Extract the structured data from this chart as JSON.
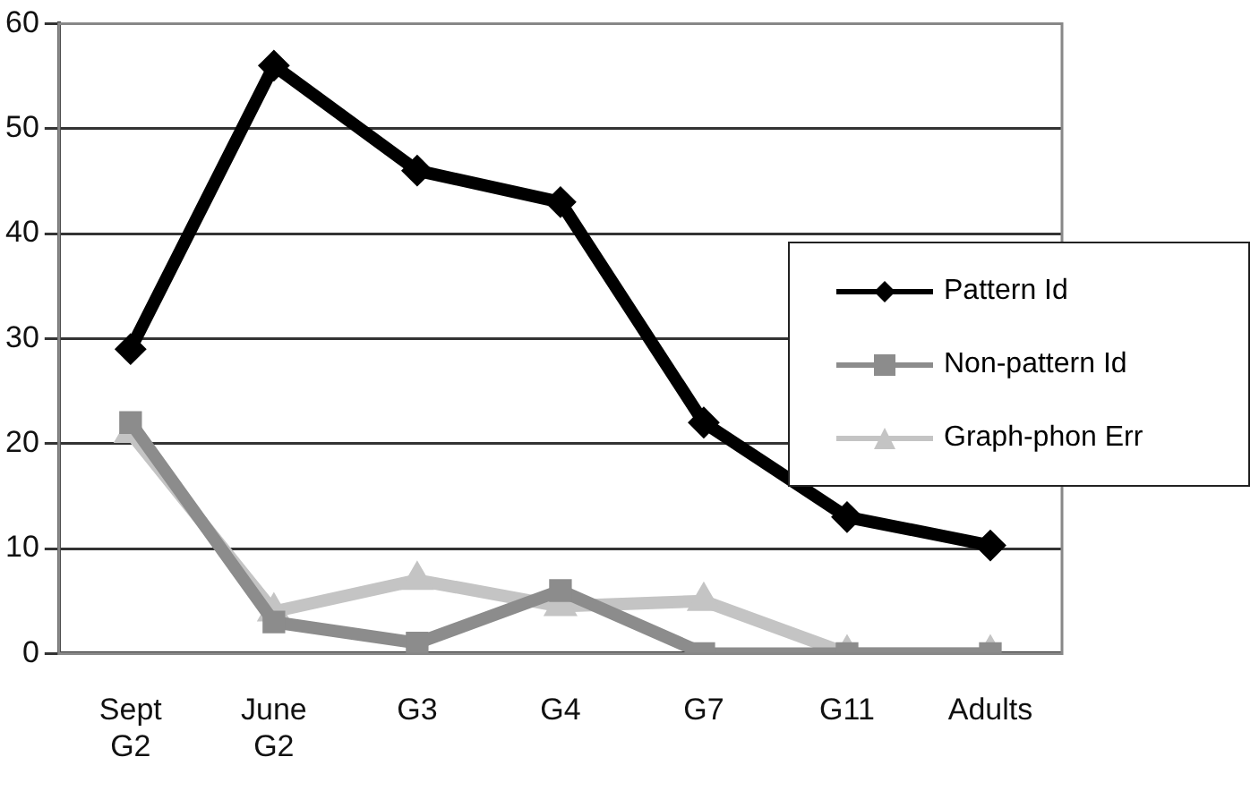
{
  "chart_data": {
    "type": "line",
    "categories": [
      "Sept G2",
      "June G2",
      "G3",
      "G4",
      "G7",
      "G11",
      "Adults"
    ],
    "series": [
      {
        "name": "Pattern Id",
        "color": "#000000",
        "marker": "diamond",
        "values": [
          29,
          56,
          46,
          43,
          22,
          13,
          10.3
        ]
      },
      {
        "name": "Non-pattern Id",
        "color": "#8c8c8c",
        "marker": "square",
        "values": [
          22,
          3,
          1,
          6,
          0,
          0,
          0
        ]
      },
      {
        "name": "Graph-phon Err",
        "color": "#c4c4c4",
        "marker": "triangle",
        "values": [
          21,
          4,
          7,
          4.5,
          5,
          0,
          0
        ]
      }
    ],
    "ylim": [
      0,
      60
    ],
    "yticks": [
      0,
      10,
      20,
      30,
      40,
      50,
      60
    ],
    "grid": "y",
    "legend": "right"
  }
}
